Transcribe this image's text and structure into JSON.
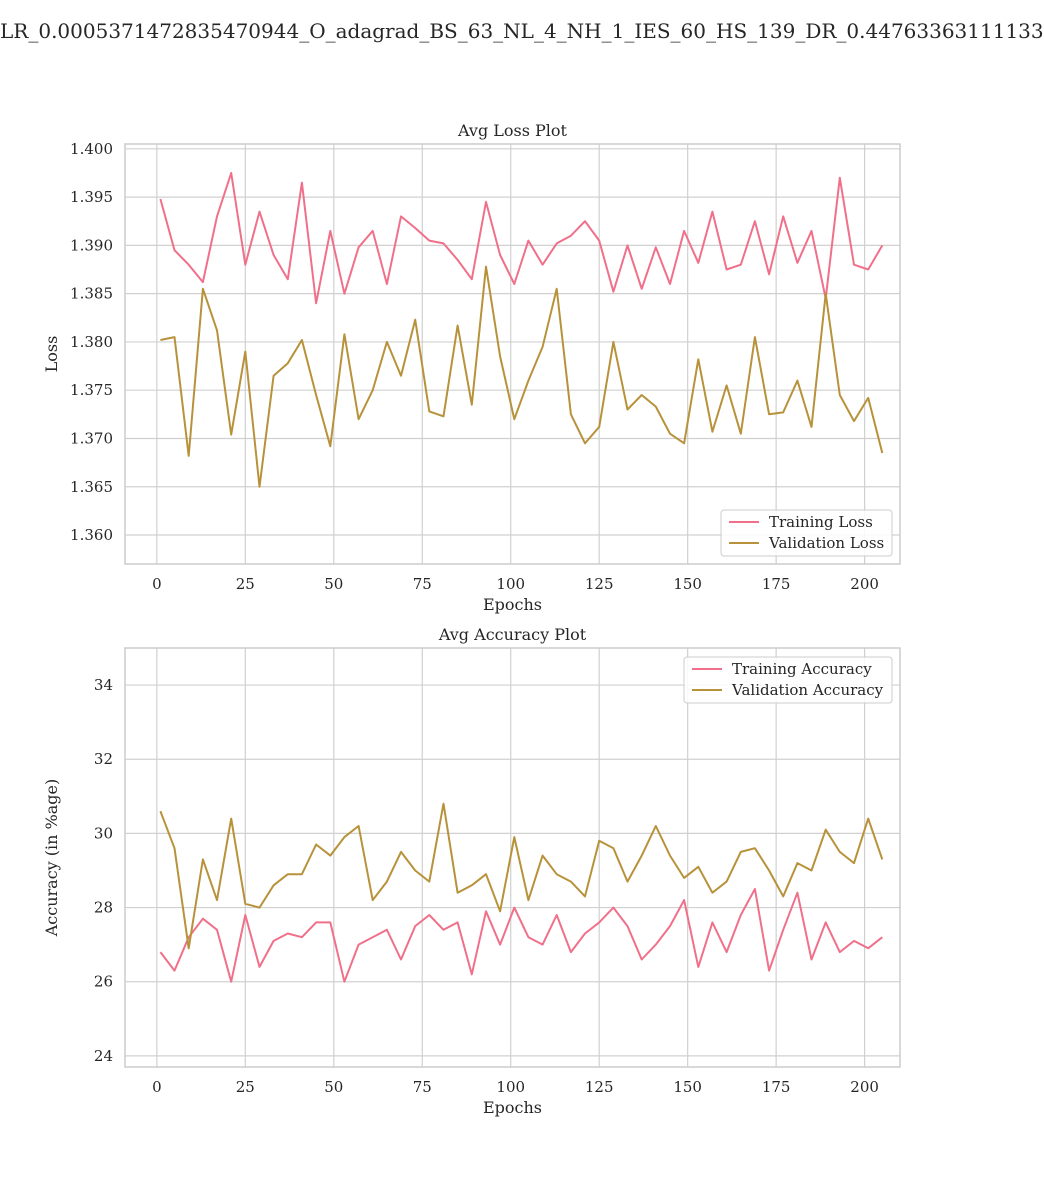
{
  "suptitle": "LR_0.0005371472835470944_O_adagrad_BS_63_NL_4_NH_1_IES_60_HS_139_DR_0.44763363111133",
  "colors": {
    "training": "#f0708a",
    "validation": "#b8923a",
    "grid": "#d0d0d0",
    "spine": "#cccccc"
  },
  "chart_data": [
    {
      "type": "line",
      "title": "Avg Loss Plot",
      "xlabel": "Epochs",
      "ylabel": "Loss",
      "xlim": [
        -9,
        210
      ],
      "ylim": [
        1.357,
        1.4005
      ],
      "xticks": [
        0,
        25,
        50,
        75,
        100,
        125,
        150,
        175,
        200
      ],
      "yticks": [
        1.36,
        1.365,
        1.37,
        1.375,
        1.38,
        1.385,
        1.39,
        1.395,
        1.4
      ],
      "ytick_decimals": 3,
      "grid": true,
      "legend": "bottom-right",
      "series": [
        {
          "name": "Training Loss",
          "key": "training",
          "x_start": 1,
          "x_step": 4,
          "values": [
            1.3948,
            1.3895,
            1.388,
            1.3862,
            1.393,
            1.3975,
            1.388,
            1.3935,
            1.389,
            1.3865,
            1.3965,
            1.384,
            1.3915,
            1.385,
            1.3898,
            1.3915,
            1.386,
            1.393,
            1.3918,
            1.3905,
            1.3902,
            1.3885,
            1.3865,
            1.3945,
            1.389,
            1.386,
            1.3905,
            1.388,
            1.3902,
            1.391,
            1.3925,
            1.3905,
            1.3852,
            1.39,
            1.3855,
            1.3898,
            1.386,
            1.3915,
            1.3882,
            1.3935,
            1.3875,
            1.388,
            1.3925,
            1.387,
            1.393,
            1.3882,
            1.3915,
            1.3845,
            1.397,
            1.388,
            1.3875,
            1.39
          ]
        },
        {
          "name": "Validation Loss",
          "key": "validation",
          "x_start": 1,
          "x_step": 4,
          "values": [
            1.3802,
            1.3805,
            1.3682,
            1.3855,
            1.3812,
            1.3704,
            1.379,
            1.365,
            1.3765,
            1.3778,
            1.3802,
            1.3745,
            1.3692,
            1.3808,
            1.372,
            1.375,
            1.38,
            1.3765,
            1.3823,
            1.3728,
            1.3723,
            1.3817,
            1.3735,
            1.3878,
            1.3785,
            1.372,
            1.376,
            1.3795,
            1.3855,
            1.3725,
            1.3695,
            1.3712,
            1.38,
            1.373,
            1.3745,
            1.3733,
            1.3705,
            1.3695,
            1.3782,
            1.3707,
            1.3755,
            1.3705,
            1.3805,
            1.3725,
            1.3727,
            1.376,
            1.3712,
            1.385,
            1.3745,
            1.3718,
            1.3742,
            1.3685
          ]
        }
      ]
    },
    {
      "type": "line",
      "title": "Avg Accuracy Plot",
      "xlabel": "Epochs",
      "ylabel": "Accuracy (in %age)",
      "xlim": [
        -9,
        210
      ],
      "ylim": [
        23.7,
        35.0
      ],
      "xticks": [
        0,
        25,
        50,
        75,
        100,
        125,
        150,
        175,
        200
      ],
      "yticks": [
        24,
        26,
        28,
        30,
        32,
        34
      ],
      "ytick_decimals": 0,
      "grid": true,
      "legend": "top-right",
      "series": [
        {
          "name": "Training Accuracy",
          "key": "training",
          "x_start": 1,
          "x_step": 4,
          "values": [
            26.8,
            26.3,
            27.2,
            27.7,
            27.4,
            26.0,
            27.8,
            26.4,
            27.1,
            27.3,
            27.2,
            27.6,
            27.6,
            26.0,
            27.0,
            27.2,
            27.4,
            26.6,
            27.5,
            27.8,
            27.4,
            27.6,
            26.2,
            27.9,
            27.0,
            28.0,
            27.2,
            27.0,
            27.8,
            26.8,
            27.3,
            27.6,
            28.0,
            27.5,
            26.6,
            27.0,
            27.5,
            28.2,
            26.4,
            27.6,
            26.8,
            27.8,
            28.5,
            26.3,
            27.4,
            28.4,
            26.6,
            27.6,
            26.8,
            27.1,
            26.9,
            27.2
          ]
        },
        {
          "name": "Validation Accuracy",
          "key": "validation",
          "x_start": 1,
          "x_step": 4,
          "values": [
            30.6,
            29.6,
            26.9,
            29.3,
            28.2,
            30.4,
            28.1,
            28.0,
            28.6,
            28.9,
            28.9,
            29.7,
            29.4,
            29.9,
            30.2,
            28.2,
            28.7,
            29.5,
            29.0,
            28.7,
            30.8,
            28.4,
            28.6,
            28.9,
            27.9,
            29.9,
            28.2,
            29.4,
            28.9,
            28.7,
            28.3,
            29.8,
            29.6,
            28.7,
            29.4,
            30.2,
            29.4,
            28.8,
            29.1,
            28.4,
            28.7,
            29.5,
            29.6,
            29.0,
            28.3,
            29.2,
            29.0,
            30.1,
            29.5,
            29.2,
            30.4,
            29.3
          ]
        }
      ]
    }
  ]
}
